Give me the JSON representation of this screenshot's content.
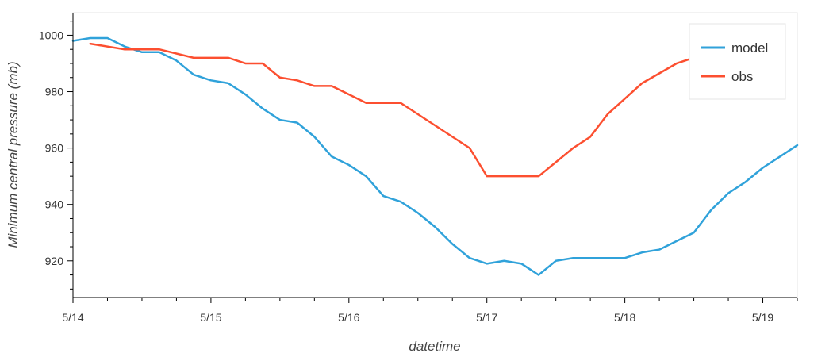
{
  "chart_data": {
    "type": "line",
    "title": "",
    "xlabel": "datetime",
    "ylabel": "Minimum central pressure (mb)",
    "x_range": [
      "2013-05-14T00:00",
      "2013-05-19T06:00"
    ],
    "ylim": [
      907,
      1008
    ],
    "x_ticks": [
      {
        "value": "2013-05-14T00:00",
        "label": "5/14"
      },
      {
        "value": "2013-05-15T00:00",
        "label": "5/15"
      },
      {
        "value": "2013-05-16T00:00",
        "label": "5/16"
      },
      {
        "value": "2013-05-17T00:00",
        "label": "5/17"
      },
      {
        "value": "2013-05-18T00:00",
        "label": "5/18"
      },
      {
        "value": "2013-05-19T00:00",
        "label": "5/19"
      }
    ],
    "y_ticks": [
      920,
      940,
      960,
      980,
      1000
    ],
    "grid": false,
    "legend_position": "top-right",
    "series": [
      {
        "name": "model",
        "color": "#30a2da",
        "x": [
          "2013-05-14T00:00",
          "2013-05-14T03:00",
          "2013-05-14T06:00",
          "2013-05-14T09:00",
          "2013-05-14T12:00",
          "2013-05-14T15:00",
          "2013-05-14T18:00",
          "2013-05-14T21:00",
          "2013-05-15T00:00",
          "2013-05-15T03:00",
          "2013-05-15T06:00",
          "2013-05-15T09:00",
          "2013-05-15T12:00",
          "2013-05-15T15:00",
          "2013-05-15T18:00",
          "2013-05-15T21:00",
          "2013-05-16T00:00",
          "2013-05-16T03:00",
          "2013-05-16T06:00",
          "2013-05-16T09:00",
          "2013-05-16T12:00",
          "2013-05-16T15:00",
          "2013-05-16T18:00",
          "2013-05-16T21:00",
          "2013-05-17T00:00",
          "2013-05-17T03:00",
          "2013-05-17T06:00",
          "2013-05-17T09:00",
          "2013-05-17T12:00",
          "2013-05-17T15:00",
          "2013-05-17T18:00",
          "2013-05-17T21:00",
          "2013-05-18T00:00",
          "2013-05-18T03:00",
          "2013-05-18T06:00",
          "2013-05-18T09:00",
          "2013-05-18T12:00",
          "2013-05-18T15:00",
          "2013-05-18T18:00",
          "2013-05-18T21:00",
          "2013-05-19T00:00",
          "2013-05-19T03:00",
          "2013-05-19T06:00"
        ],
        "values": [
          998,
          999,
          999,
          996,
          994,
          994,
          991,
          986,
          984,
          983,
          979,
          974,
          970,
          969,
          964,
          957,
          954,
          950,
          943,
          941,
          937,
          932,
          926,
          921,
          919,
          920,
          919,
          915,
          920,
          921,
          921,
          921,
          921,
          923,
          924,
          927,
          930,
          938,
          944,
          948,
          953,
          957,
          961
        ]
      },
      {
        "name": "obs",
        "color": "#fc4f30",
        "x": [
          "2013-05-14T03:00",
          "2013-05-14T09:00",
          "2013-05-14T15:00",
          "2013-05-14T21:00",
          "2013-05-15T03:00",
          "2013-05-15T06:00",
          "2013-05-15T09:00",
          "2013-05-15T12:00",
          "2013-05-15T15:00",
          "2013-05-15T18:00",
          "2013-05-15T21:00",
          "2013-05-16T03:00",
          "2013-05-16T09:00",
          "2013-05-16T21:00",
          "2013-05-17T00:00",
          "2013-05-17T09:00",
          "2013-05-17T15:00",
          "2013-05-17T18:00",
          "2013-05-17T21:00",
          "2013-05-18T03:00",
          "2013-05-18T09:00",
          "2013-05-18T12:00",
          "2013-05-18T15:00"
        ],
        "values": [
          997,
          995,
          995,
          992,
          992,
          990,
          990,
          985,
          984,
          982,
          982,
          976,
          976,
          960,
          950,
          950,
          960,
          964,
          972,
          983,
          990,
          992,
          993
        ]
      }
    ]
  }
}
